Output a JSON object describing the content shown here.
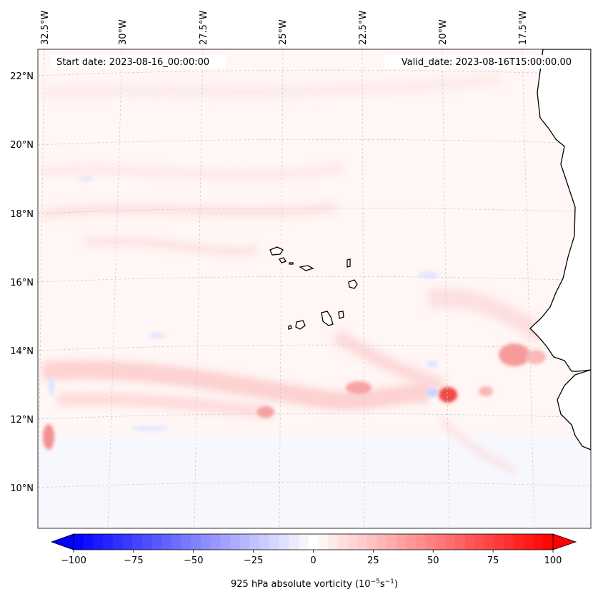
{
  "header": {
    "start_date": "Start date: 2023-08-16_00:00:00",
    "valid_date": "Valid_date: 2023-08-16T15:00:00.00"
  },
  "lon_labels": [
    "32.5°W",
    "30°W",
    "27.5°W",
    "25°W",
    "22.5°W",
    "20°W",
    "17.5°W"
  ],
  "lat_labels": [
    "22°N",
    "20°N",
    "18°N",
    "16°N",
    "14°N",
    "12°N",
    "10°N"
  ],
  "colorbar": {
    "ticks": [
      "−100",
      "−75",
      "−50",
      "−25",
      "0",
      "25",
      "50",
      "75",
      "100"
    ],
    "label_main": "925 hPa absolute vorticity (10",
    "label_exp1": "−5",
    "label_mid": "s",
    "label_exp2": "−1",
    "label_end": ")",
    "min": -100,
    "max": 100,
    "levels": 49
  },
  "colors": {
    "negative_extreme": "#0000ff",
    "positive_extreme": "#ff0000",
    "neutral": "#ffffff",
    "coastline": "#000000",
    "gridline": "#c8c8c8"
  },
  "field": {
    "variable": "925 hPa absolute vorticity",
    "background_value": 4
  }
}
